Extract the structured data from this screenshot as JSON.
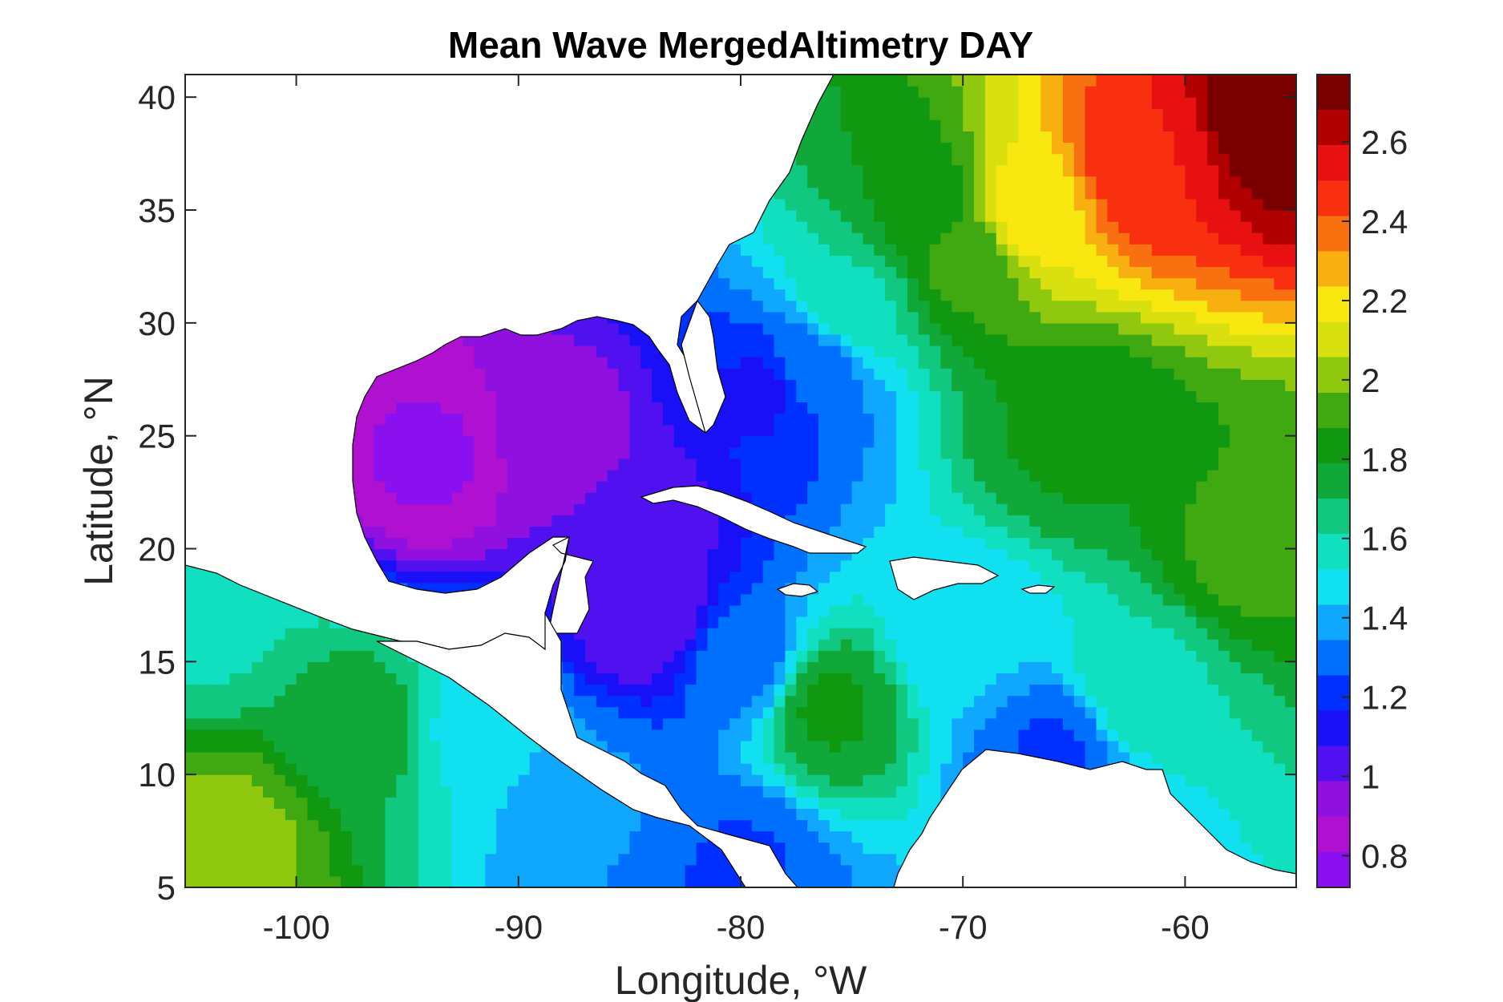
{
  "chart_data": {
    "type": "heatmap",
    "subtype": "filled-contour-map",
    "title": "Mean Wave MergedAltimetry DAY",
    "xlabel": "Longitude, °W",
    "ylabel": "Latitude, °N",
    "xlim": [
      -105,
      -55
    ],
    "ylim": [
      5,
      41
    ],
    "xticks": [
      -100,
      -90,
      -80,
      -70,
      -60
    ],
    "yticks": [
      5,
      10,
      15,
      20,
      25,
      30,
      35,
      40
    ],
    "colorbar": {
      "range": [
        0.72,
        2.77
      ],
      "ticks": [
        0.8,
        1,
        1.2,
        1.4,
        1.6,
        1.8,
        2,
        2.2,
        2.4,
        2.6
      ],
      "colormap": [
        "#8a10f0",
        "#b010d0",
        "#9010e0",
        "#5010f0",
        "#1a10f8",
        "#0030ff",
        "#0070ff",
        "#10a8ff",
        "#10e0f0",
        "#10e0c0",
        "#10c880",
        "#10a838",
        "#109810",
        "#40a810",
        "#90c810",
        "#d8e010",
        "#f8e810",
        "#f8b010",
        "#f87010",
        "#f83010",
        "#e81010",
        "#b00000",
        "#7a0000"
      ]
    },
    "field_samples": [
      {
        "lon": -56,
        "lat": 39,
        "value": 2.75
      },
      {
        "lon": -62,
        "lat": 37,
        "value": 2.5
      },
      {
        "lon": -67,
        "lat": 35,
        "value": 2.2
      },
      {
        "lon": -70,
        "lat": 33,
        "value": 1.9
      },
      {
        "lon": -65,
        "lat": 25,
        "value": 1.8
      },
      {
        "lon": -57,
        "lat": 20,
        "value": 1.9
      },
      {
        "lon": -72,
        "lat": 35,
        "value": 1.8
      },
      {
        "lon": -75,
        "lat": 31,
        "value": 1.6
      },
      {
        "lon": -77,
        "lat": 28,
        "value": 1.3
      },
      {
        "lon": -79,
        "lat": 27,
        "value": 1.15
      },
      {
        "lon": -94,
        "lat": 24,
        "value": 0.8
      },
      {
        "lon": -88,
        "lat": 25,
        "value": 0.95
      },
      {
        "lon": -85,
        "lat": 21,
        "value": 1.0
      },
      {
        "lon": -84,
        "lat": 17,
        "value": 1.0
      },
      {
        "lon": -80,
        "lat": 15,
        "value": 1.3
      },
      {
        "lon": -76,
        "lat": 13,
        "value": 1.8
      },
      {
        "lon": -70,
        "lat": 16,
        "value": 1.45
      },
      {
        "lon": -66,
        "lat": 11,
        "value": 1.25
      },
      {
        "lon": -62,
        "lat": 14,
        "value": 1.6
      },
      {
        "lon": -103,
        "lat": 7,
        "value": 2.0
      },
      {
        "lon": -97,
        "lat": 12,
        "value": 1.75
      },
      {
        "lon": -92,
        "lat": 12,
        "value": 1.5
      },
      {
        "lon": -87,
        "lat": 9,
        "value": 1.35
      },
      {
        "lon": -80,
        "lat": 6,
        "value": 1.25
      },
      {
        "lon": -104,
        "lat": 17,
        "value": 1.6
      }
    ]
  }
}
